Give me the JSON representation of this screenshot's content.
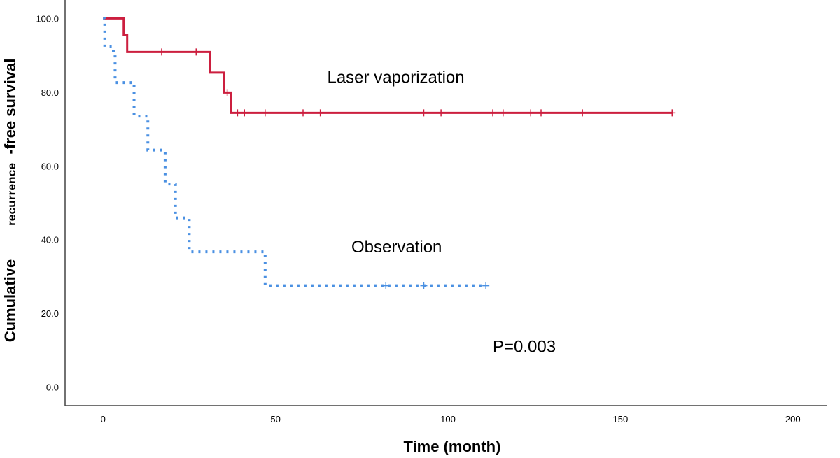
{
  "chart_data": {
    "type": "line",
    "title": "",
    "xlabel": "Time (month)",
    "ylabel_parts": [
      "Cumulative",
      "recurrence",
      "-free survival"
    ],
    "xlim": [
      -11,
      210
    ],
    "ylim": [
      -5,
      105
    ],
    "xticks": [
      0,
      50,
      100,
      150,
      200
    ],
    "yticks": [
      0.0,
      20.0,
      40.0,
      60.0,
      80.0,
      100.0
    ],
    "grid": false,
    "legend": "none",
    "series": [
      {
        "name": "Laser vaporization",
        "color": "#cc1f3f",
        "dash": "solid",
        "steps": [
          [
            0,
            100.0
          ],
          [
            6,
            95.5
          ],
          [
            7,
            90.9
          ],
          [
            31,
            85.3
          ],
          [
            35,
            79.9
          ],
          [
            37,
            74.4
          ],
          [
            165,
            74.4
          ]
        ],
        "censored": [
          17,
          27,
          36,
          39,
          41,
          47,
          58,
          63,
          93,
          98,
          113,
          116,
          124,
          127,
          139,
          165
        ]
      },
      {
        "name": "Observation",
        "color": "#4a90e2",
        "dash": "dotted",
        "steps": [
          [
            0,
            100.0
          ],
          [
            0.5,
            92.3
          ],
          [
            3,
            90.8
          ],
          [
            3.5,
            82.6
          ],
          [
            9,
            73.5
          ],
          [
            13,
            64.3
          ],
          [
            18,
            55.1
          ],
          [
            21,
            45.9
          ],
          [
            25,
            36.7
          ],
          [
            47,
            27.5
          ],
          [
            111,
            27.5
          ]
        ],
        "censored": [
          82,
          93,
          111
        ]
      }
    ],
    "annotations": [
      {
        "text": "Laser vaporization",
        "x": 65,
        "y": 82.5
      },
      {
        "text": "Observation",
        "x": 72,
        "y": 36.5
      },
      {
        "text": "P=0.003",
        "x": 113,
        "y": 9.5
      }
    ]
  }
}
